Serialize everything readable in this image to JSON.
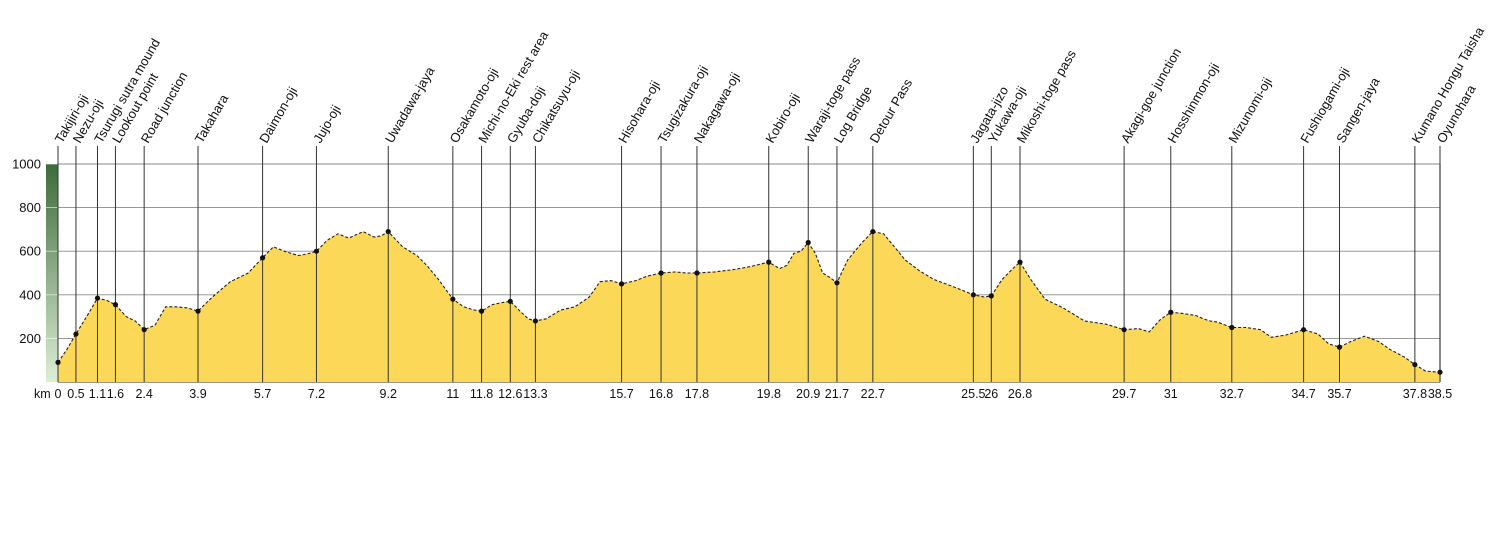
{
  "chart_data": {
    "type": "area",
    "x_unit_label": "km",
    "yticks": [
      200,
      400,
      600,
      800,
      1000
    ],
    "ylim": [
      0,
      1000
    ],
    "xlim": [
      0,
      38.5
    ],
    "colors": {
      "fill": "#fcd858",
      "frame": "#555555",
      "grid": "#8a8a8a",
      "scale_top": "#3d6b3a",
      "scale_bottom": "#dcefd5"
    },
    "points": [
      {
        "name": "Takijiri-oji",
        "km": 0,
        "tick": "0",
        "elevation": 90
      },
      {
        "name": "Nezu-oji",
        "km": 0.5,
        "tick": "0.5",
        "elevation": 220
      },
      {
        "name": "Tsurugi sutra mound",
        "km": 1.1,
        "tick": "1.1",
        "elevation": 385
      },
      {
        "name": "Lookout point",
        "km": 1.6,
        "tick": "1.6",
        "elevation": 355
      },
      {
        "name": "Road junction",
        "km": 2.4,
        "tick": "2.4",
        "elevation": 240
      },
      {
        "name": "Takahara",
        "km": 3.9,
        "tick": "3.9",
        "elevation": 325
      },
      {
        "name": "Daimon-oji",
        "km": 5.7,
        "tick": "5.7",
        "elevation": 570
      },
      {
        "name": "Jujo-oji",
        "km": 7.2,
        "tick": "7.2",
        "elevation": 600
      },
      {
        "name": "Uwadawa-jaya",
        "km": 9.2,
        "tick": "9.2",
        "elevation": 690
      },
      {
        "name": "Osakamoto-oji",
        "km": 11,
        "tick": "11",
        "elevation": 380
      },
      {
        "name": "Michi-no-Eki rest area",
        "km": 11.8,
        "tick": "11.8",
        "elevation": 325
      },
      {
        "name": "Gyuba-doji",
        "km": 12.6,
        "tick": "12.6",
        "elevation": 370
      },
      {
        "name": "Chikatsuyu-oji",
        "km": 13.3,
        "tick": "13.3",
        "elevation": 280
      },
      {
        "name": "Hisohara-oji",
        "km": 15.7,
        "tick": "15.7",
        "elevation": 450
      },
      {
        "name": "Tsugizakura-oji",
        "km": 16.8,
        "tick": "16.8",
        "elevation": 500
      },
      {
        "name": "Nakagawa-oji",
        "km": 17.8,
        "tick": "17.8",
        "elevation": 500
      },
      {
        "name": "Kobiro-oji",
        "km": 19.8,
        "tick": "19.8",
        "elevation": 550
      },
      {
        "name": "Waraji-toge pass",
        "km": 20.9,
        "tick": "20.9",
        "elevation": 640
      },
      {
        "name": "Log Bridge",
        "km": 21.7,
        "tick": "21.7",
        "elevation": 455
      },
      {
        "name": "Detour Pass",
        "km": 22.7,
        "tick": "22.7",
        "elevation": 690
      },
      {
        "name": "Jagata-jizo",
        "km": 25.5,
        "tick": "25.5",
        "elevation": 400
      },
      {
        "name": "Yukawa-oji",
        "km": 26,
        "tick": "26",
        "elevation": 395
      },
      {
        "name": "Mikoshi-toge pass",
        "km": 26.8,
        "tick": "26.8",
        "elevation": 550
      },
      {
        "name": "Akagi-goe junction",
        "km": 29.7,
        "tick": "29.7",
        "elevation": 240
      },
      {
        "name": "Hosshinmon-oji",
        "km": 31,
        "tick": "31",
        "elevation": 320
      },
      {
        "name": "Mizunomi-oji",
        "km": 32.7,
        "tick": "32.7",
        "elevation": 250
      },
      {
        "name": "Fushiogami-oji",
        "km": 34.7,
        "tick": "34.7",
        "elevation": 240
      },
      {
        "name": "Sangen-jaya",
        "km": 35.7,
        "tick": "35.7",
        "elevation": 160
      },
      {
        "name": "Kumano Hongu Taisha",
        "km": 37.8,
        "tick": "37.8",
        "elevation": 80
      },
      {
        "name": "Oyunohara",
        "km": 38.5,
        "tick": "38.5",
        "elevation": 45
      }
    ],
    "profile": [
      [
        0,
        90
      ],
      [
        0.25,
        150
      ],
      [
        0.5,
        220
      ],
      [
        0.8,
        300
      ],
      [
        1.1,
        385
      ],
      [
        1.35,
        375
      ],
      [
        1.6,
        355
      ],
      [
        1.9,
        300
      ],
      [
        2.15,
        280
      ],
      [
        2.4,
        240
      ],
      [
        2.7,
        260
      ],
      [
        3.0,
        345
      ],
      [
        3.3,
        345
      ],
      [
        3.6,
        340
      ],
      [
        3.9,
        325
      ],
      [
        4.3,
        390
      ],
      [
        4.8,
        460
      ],
      [
        5.3,
        500
      ],
      [
        5.7,
        570
      ],
      [
        6.0,
        620
      ],
      [
        6.3,
        600
      ],
      [
        6.7,
        580
      ],
      [
        7.0,
        590
      ],
      [
        7.2,
        600
      ],
      [
        7.5,
        650
      ],
      [
        7.8,
        680
      ],
      [
        8.1,
        660
      ],
      [
        8.5,
        690
      ],
      [
        8.8,
        665
      ],
      [
        9.0,
        670
      ],
      [
        9.2,
        690
      ],
      [
        9.6,
        620
      ],
      [
        10.0,
        580
      ],
      [
        10.3,
        530
      ],
      [
        10.6,
        470
      ],
      [
        11,
        380
      ],
      [
        11.3,
        345
      ],
      [
        11.6,
        330
      ],
      [
        11.8,
        325
      ],
      [
        12.1,
        355
      ],
      [
        12.4,
        365
      ],
      [
        12.6,
        370
      ],
      [
        12.9,
        320
      ],
      [
        13.1,
        290
      ],
      [
        13.3,
        280
      ],
      [
        13.6,
        290
      ],
      [
        14.0,
        330
      ],
      [
        14.4,
        345
      ],
      [
        14.8,
        390
      ],
      [
        15.1,
        460
      ],
      [
        15.4,
        465
      ],
      [
        15.7,
        450
      ],
      [
        16.1,
        465
      ],
      [
        16.4,
        485
      ],
      [
        16.8,
        500
      ],
      [
        17.2,
        505
      ],
      [
        17.5,
        500
      ],
      [
        17.8,
        500
      ],
      [
        18.3,
        505
      ],
      [
        18.8,
        515
      ],
      [
        19.3,
        530
      ],
      [
        19.8,
        550
      ],
      [
        20.1,
        520
      ],
      [
        20.3,
        535
      ],
      [
        20.5,
        590
      ],
      [
        20.7,
        600
      ],
      [
        20.9,
        640
      ],
      [
        21.1,
        590
      ],
      [
        21.3,
        500
      ],
      [
        21.5,
        480
      ],
      [
        21.7,
        455
      ],
      [
        22.0,
        560
      ],
      [
        22.4,
        640
      ],
      [
        22.7,
        690
      ],
      [
        23.0,
        680
      ],
      [
        23.3,
        620
      ],
      [
        23.6,
        560
      ],
      [
        24.0,
        510
      ],
      [
        24.4,
        470
      ],
      [
        24.9,
        440
      ],
      [
        25.2,
        420
      ],
      [
        25.5,
        400
      ],
      [
        25.8,
        390
      ],
      [
        26,
        395
      ],
      [
        26.3,
        470
      ],
      [
        26.6,
        520
      ],
      [
        26.8,
        550
      ],
      [
        27.1,
        470
      ],
      [
        27.5,
        380
      ],
      [
        28.0,
        340
      ],
      [
        28.6,
        280
      ],
      [
        29.2,
        265
      ],
      [
        29.7,
        240
      ],
      [
        30.1,
        245
      ],
      [
        30.4,
        230
      ],
      [
        30.7,
        285
      ],
      [
        31,
        320
      ],
      [
        31.3,
        315
      ],
      [
        31.7,
        305
      ],
      [
        31.9,
        290
      ],
      [
        32.1,
        280
      ],
      [
        32.3,
        275
      ],
      [
        32.7,
        250
      ],
      [
        33.1,
        250
      ],
      [
        33.5,
        240
      ],
      [
        33.8,
        205
      ],
      [
        34.2,
        215
      ],
      [
        34.7,
        240
      ],
      [
        35.1,
        220
      ],
      [
        35.4,
        175
      ],
      [
        35.7,
        160
      ],
      [
        36.0,
        185
      ],
      [
        36.4,
        210
      ],
      [
        36.8,
        185
      ],
      [
        37.1,
        150
      ],
      [
        37.5,
        115
      ],
      [
        37.8,
        80
      ],
      [
        38.1,
        50
      ],
      [
        38.5,
        45
      ]
    ]
  }
}
